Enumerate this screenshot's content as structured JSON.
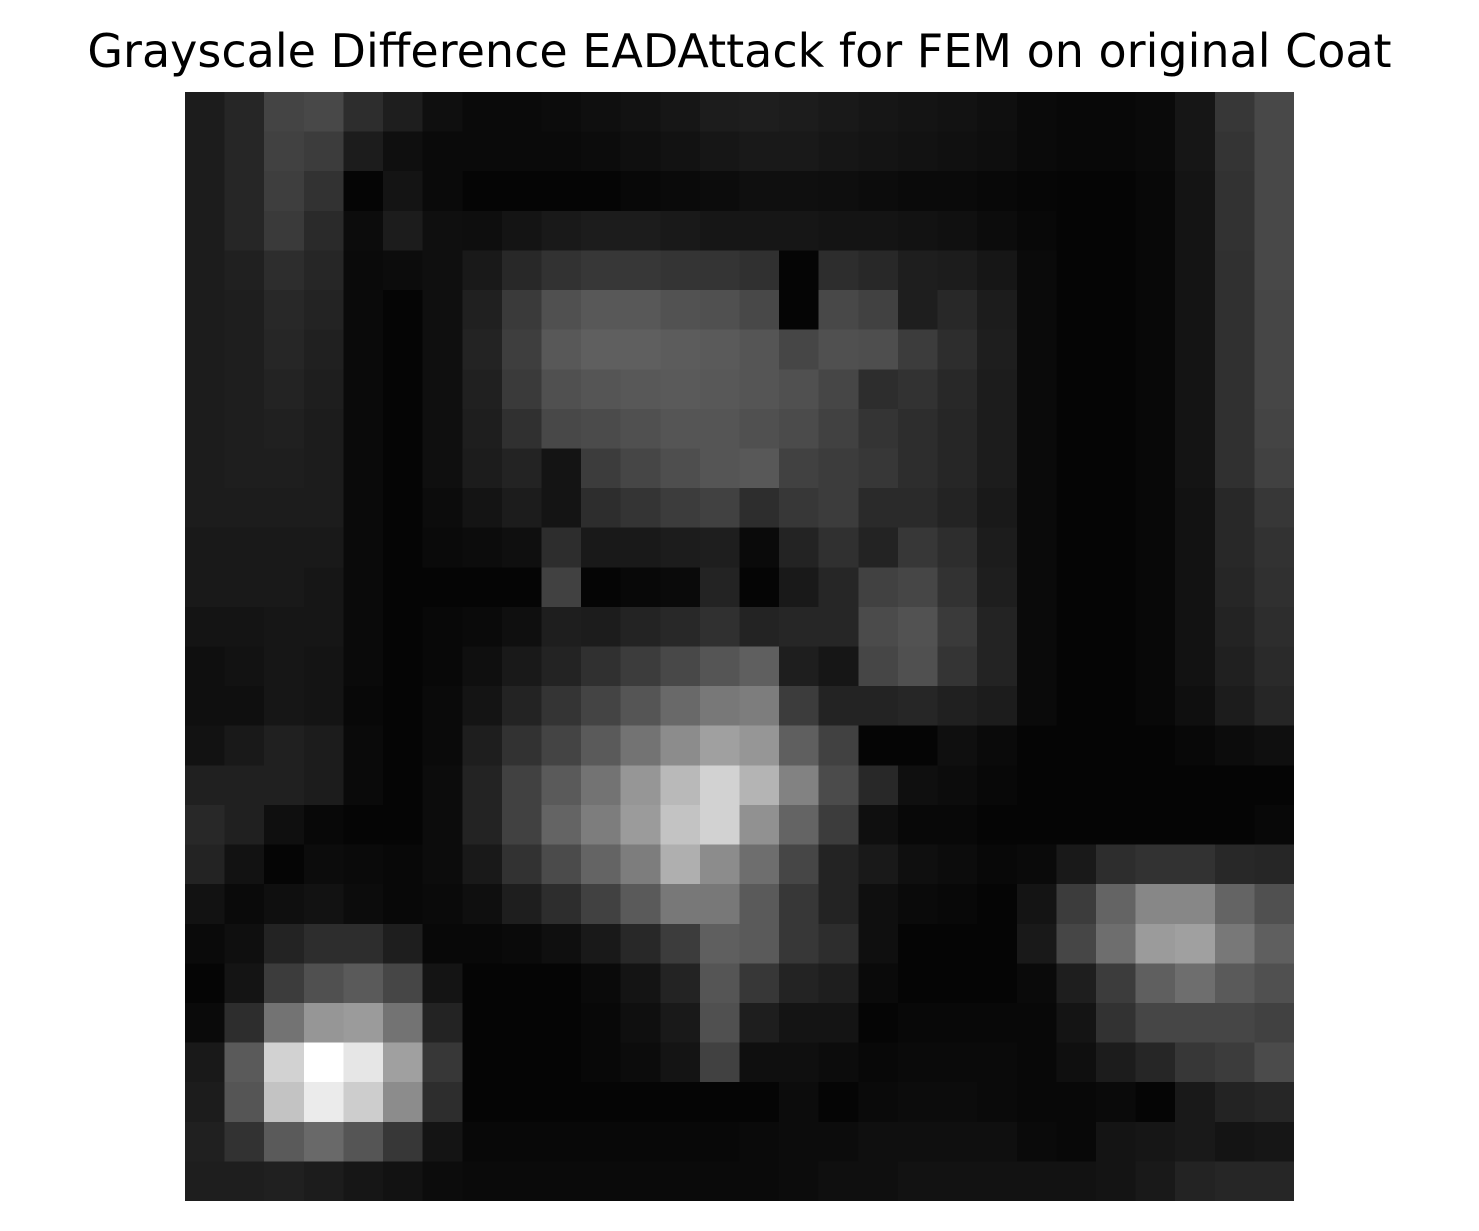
{
  "chart_data": {
    "type": "heatmap",
    "title": "Grayscale Difference EADAttack for FEM on original Coat",
    "colormap": "gray",
    "axes": "off",
    "rows": 28,
    "cols": 28,
    "values": [
      [
        28,
        38,
        68,
        72,
        45,
        30,
        15,
        10,
        10,
        12,
        15,
        18,
        22,
        28,
        30,
        28,
        25,
        22,
        20,
        18,
        15,
        10,
        8,
        8,
        10,
        22,
        55,
        72
      ],
      [
        28,
        38,
        65,
        60,
        28,
        15,
        10,
        10,
        10,
        10,
        12,
        15,
        18,
        22,
        25,
        25,
        22,
        20,
        18,
        16,
        14,
        10,
        8,
        8,
        10,
        22,
        52,
        72
      ],
      [
        28,
        38,
        62,
        50,
        5,
        20,
        10,
        5,
        5,
        5,
        5,
        8,
        10,
        12,
        15,
        15,
        14,
        12,
        10,
        10,
        8,
        6,
        5,
        5,
        8,
        20,
        50,
        72
      ],
      [
        28,
        38,
        58,
        42,
        12,
        28,
        15,
        14,
        20,
        25,
        28,
        28,
        25,
        22,
        22,
        22,
        20,
        20,
        18,
        16,
        12,
        8,
        5,
        5,
        8,
        20,
        50,
        72
      ],
      [
        28,
        32,
        45,
        38,
        10,
        12,
        15,
        25,
        40,
        50,
        55,
        55,
        52,
        52,
        48,
        5,
        45,
        40,
        30,
        28,
        22,
        10,
        5,
        5,
        8,
        20,
        48,
        72
      ],
      [
        28,
        30,
        40,
        35,
        10,
        5,
        15,
        32,
        58,
        80,
        88,
        88,
        82,
        80,
        72,
        5,
        72,
        65,
        30,
        40,
        28,
        10,
        5,
        5,
        8,
        20,
        48,
        70
      ],
      [
        28,
        30,
        38,
        32,
        10,
        5,
        15,
        35,
        62,
        88,
        95,
        95,
        92,
        90,
        85,
        70,
        80,
        78,
        60,
        45,
        30,
        10,
        5,
        5,
        8,
        20,
        48,
        70
      ],
      [
        28,
        30,
        35,
        30,
        10,
        5,
        15,
        32,
        58,
        80,
        85,
        88,
        90,
        88,
        85,
        80,
        70,
        45,
        50,
        40,
        28,
        10,
        5,
        5,
        8,
        20,
        48,
        70
      ],
      [
        28,
        30,
        32,
        28,
        10,
        5,
        15,
        30,
        48,
        72,
        75,
        80,
        85,
        85,
        80,
        75,
        65,
        52,
        45,
        38,
        28,
        10,
        5,
        5,
        8,
        20,
        48,
        68
      ],
      [
        28,
        30,
        30,
        28,
        10,
        5,
        15,
        28,
        35,
        20,
        60,
        70,
        78,
        85,
        88,
        65,
        60,
        55,
        45,
        38,
        28,
        10,
        5,
        5,
        8,
        20,
        48,
        65
      ],
      [
        28,
        28,
        28,
        28,
        10,
        5,
        12,
        20,
        28,
        20,
        45,
        52,
        60,
        65,
        45,
        55,
        60,
        42,
        42,
        35,
        25,
        10,
        5,
        5,
        8,
        18,
        40,
        55
      ],
      [
        25,
        25,
        25,
        25,
        10,
        5,
        10,
        12,
        15,
        45,
        25,
        25,
        28,
        30,
        10,
        35,
        48,
        35,
        55,
        45,
        28,
        10,
        5,
        5,
        8,
        18,
        40,
        50
      ],
      [
        25,
        25,
        25,
        22,
        10,
        5,
        5,
        5,
        5,
        65,
        5,
        8,
        10,
        35,
        5,
        25,
        38,
        65,
        70,
        50,
        30,
        10,
        5,
        5,
        8,
        18,
        38,
        48
      ],
      [
        20,
        20,
        22,
        22,
        10,
        5,
        8,
        10,
        15,
        30,
        28,
        35,
        40,
        48,
        35,
        38,
        38,
        75,
        82,
        58,
        35,
        10,
        5,
        5,
        8,
        18,
        35,
        45
      ],
      [
        15,
        18,
        22,
        20,
        10,
        5,
        8,
        15,
        25,
        35,
        48,
        60,
        72,
        85,
        95,
        30,
        22,
        70,
        80,
        52,
        35,
        10,
        5,
        5,
        8,
        18,
        32,
        42
      ],
      [
        15,
        15,
        22,
        20,
        8,
        5,
        10,
        20,
        35,
        52,
        68,
        85,
        105,
        120,
        125,
        60,
        35,
        35,
        38,
        32,
        28,
        10,
        5,
        5,
        8,
        15,
        28,
        38
      ],
      [
        18,
        25,
        32,
        28,
        10,
        5,
        10,
        30,
        50,
        68,
        90,
        115,
        140,
        160,
        150,
        95,
        65,
        5,
        5,
        15,
        10,
        5,
        5,
        5,
        5,
        8,
        12,
        15
      ],
      [
        32,
        32,
        32,
        28,
        10,
        5,
        12,
        35,
        65,
        90,
        115,
        150,
        185,
        210,
        180,
        130,
        75,
        40,
        15,
        12,
        8,
        5,
        5,
        5,
        5,
        5,
        5,
        5
      ],
      [
        40,
        32,
        15,
        8,
        5,
        5,
        12,
        35,
        65,
        100,
        125,
        155,
        195,
        210,
        145,
        100,
        60,
        15,
        8,
        8,
        5,
        5,
        5,
        5,
        5,
        5,
        5,
        8
      ],
      [
        35,
        18,
        5,
        12,
        10,
        8,
        12,
        25,
        50,
        75,
        100,
        125,
        175,
        140,
        110,
        70,
        35,
        25,
        15,
        12,
        8,
        10,
        25,
        45,
        50,
        50,
        40,
        38
      ],
      [
        18,
        10,
        15,
        18,
        12,
        8,
        10,
        15,
        30,
        45,
        65,
        90,
        120,
        120,
        90,
        55,
        35,
        15,
        10,
        8,
        5,
        20,
        60,
        100,
        135,
        135,
        100,
        80
      ],
      [
        10,
        15,
        35,
        45,
        45,
        30,
        8,
        8,
        10,
        15,
        25,
        40,
        60,
        95,
        90,
        55,
        45,
        15,
        5,
        5,
        5,
        25,
        70,
        110,
        155,
        160,
        120,
        95
      ],
      [
        5,
        20,
        60,
        80,
        90,
        70,
        20,
        5,
        5,
        5,
        10,
        20,
        35,
        85,
        55,
        35,
        30,
        10,
        5,
        5,
        5,
        10,
        30,
        60,
        95,
        110,
        90,
        80
      ],
      [
        10,
        45,
        115,
        150,
        155,
        115,
        35,
        5,
        5,
        5,
        8,
        15,
        25,
        80,
        30,
        20,
        20,
        5,
        8,
        8,
        8,
        8,
        20,
        50,
        70,
        70,
        70,
        65
      ],
      [
        25,
        90,
        210,
        255,
        230,
        160,
        55,
        5,
        5,
        5,
        8,
        12,
        20,
        65,
        15,
        15,
        12,
        8,
        10,
        10,
        10,
        8,
        15,
        28,
        38,
        55,
        60,
        75
      ],
      [
        28,
        85,
        195,
        235,
        205,
        140,
        45,
        5,
        5,
        5,
        5,
        5,
        5,
        5,
        5,
        12,
        5,
        10,
        12,
        12,
        10,
        8,
        8,
        10,
        5,
        25,
        35,
        38
      ],
      [
        32,
        50,
        90,
        105,
        85,
        55,
        20,
        8,
        8,
        8,
        8,
        8,
        8,
        8,
        10,
        12,
        12,
        15,
        15,
        15,
        15,
        10,
        8,
        20,
        22,
        25,
        20,
        22
      ],
      [
        30,
        30,
        32,
        28,
        22,
        18,
        12,
        10,
        10,
        10,
        10,
        10,
        10,
        10,
        10,
        12,
        15,
        15,
        18,
        18,
        18,
        18,
        18,
        20,
        25,
        35,
        38,
        38
      ]
    ]
  }
}
